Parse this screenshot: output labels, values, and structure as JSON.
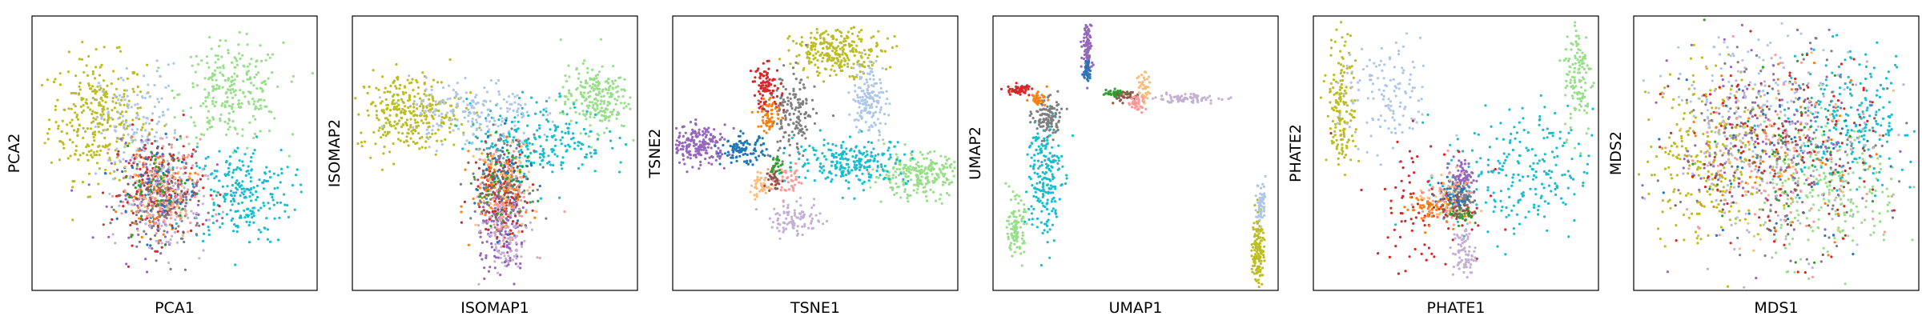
{
  "chart_data": [
    {
      "type": "scatter",
      "xlabel": "PCA1",
      "ylabel": "PCA2",
      "xticks": [],
      "yticks": [],
      "clusters": [
        {
          "color": "#bcbd22",
          "center": [
            0.23,
            0.63
          ],
          "spread": [
            0.085,
            0.11
          ],
          "weight": 1.2
        },
        {
          "color": "#98df8a",
          "center": [
            0.7,
            0.72
          ],
          "spread": [
            0.09,
            0.09
          ],
          "weight": 1.0
        },
        {
          "color": "#17becf",
          "center": [
            0.73,
            0.35
          ],
          "spread": [
            0.09,
            0.09
          ],
          "weight": 0.9
        },
        {
          "color": "#aec7e8",
          "center": [
            0.38,
            0.58
          ],
          "spread": [
            0.07,
            0.12
          ],
          "weight": 0.6
        },
        {
          "color": "#9467bd",
          "center": [
            0.44,
            0.35
          ],
          "spread": [
            0.08,
            0.09
          ],
          "weight": 0.6
        },
        {
          "color": "#d62728",
          "center": [
            0.44,
            0.38
          ],
          "spread": [
            0.08,
            0.1
          ],
          "weight": 0.45
        },
        {
          "color": "#7f7f7f",
          "center": [
            0.46,
            0.3
          ],
          "spread": [
            0.07,
            0.09
          ],
          "weight": 0.45
        },
        {
          "color": "#ff7f0e",
          "center": [
            0.44,
            0.36
          ],
          "spread": [
            0.06,
            0.08
          ],
          "weight": 0.25
        },
        {
          "color": "#c5b0d5",
          "center": [
            0.47,
            0.31
          ],
          "spread": [
            0.07,
            0.09
          ],
          "weight": 0.35
        },
        {
          "color": "#ff9896",
          "center": [
            0.45,
            0.37
          ],
          "spread": [
            0.07,
            0.09
          ],
          "weight": 0.3
        },
        {
          "color": "#8c564b",
          "center": [
            0.45,
            0.36
          ],
          "spread": [
            0.06,
            0.08
          ],
          "weight": 0.2
        },
        {
          "color": "#1f77b4",
          "center": [
            0.44,
            0.38
          ],
          "spread": [
            0.07,
            0.09
          ],
          "weight": 0.2
        },
        {
          "color": "#ffbb78",
          "center": [
            0.45,
            0.37
          ],
          "spread": [
            0.07,
            0.09
          ],
          "weight": 0.2
        },
        {
          "color": "#2ca02c",
          "center": [
            0.45,
            0.37
          ],
          "spread": [
            0.06,
            0.08
          ],
          "weight": 0.15
        }
      ]
    },
    {
      "type": "scatter",
      "xlabel": "ISOMAP1",
      "ylabel": "ISOMAP2",
      "xticks": [],
      "yticks": [],
      "clusters": [
        {
          "color": "#bcbd22",
          "center": [
            0.2,
            0.65
          ],
          "spread": [
            0.09,
            0.07
          ],
          "weight": 1.2
        },
        {
          "color": "#98df8a",
          "center": [
            0.85,
            0.7
          ],
          "spread": [
            0.06,
            0.06
          ],
          "weight": 0.9
        },
        {
          "color": "#17becf",
          "center": [
            0.65,
            0.55
          ],
          "spread": [
            0.12,
            0.07
          ],
          "weight": 0.9
        },
        {
          "color": "#aec7e8",
          "center": [
            0.42,
            0.65
          ],
          "spread": [
            0.11,
            0.06
          ],
          "weight": 0.7
        },
        {
          "color": "#9467bd",
          "center": [
            0.53,
            0.22
          ],
          "spread": [
            0.04,
            0.1
          ],
          "weight": 0.6
        },
        {
          "color": "#d62728",
          "center": [
            0.52,
            0.35
          ],
          "spread": [
            0.05,
            0.09
          ],
          "weight": 0.45
        },
        {
          "color": "#7f7f7f",
          "center": [
            0.52,
            0.4
          ],
          "spread": [
            0.05,
            0.08
          ],
          "weight": 0.45
        },
        {
          "color": "#c5b0d5",
          "center": [
            0.54,
            0.18
          ],
          "spread": [
            0.04,
            0.08
          ],
          "weight": 0.35
        },
        {
          "color": "#ff9896",
          "center": [
            0.53,
            0.36
          ],
          "spread": [
            0.05,
            0.08
          ],
          "weight": 0.3
        },
        {
          "color": "#ff7f0e",
          "center": [
            0.52,
            0.38
          ],
          "spread": [
            0.05,
            0.08
          ],
          "weight": 0.25
        },
        {
          "color": "#1f77b4",
          "center": [
            0.53,
            0.4
          ],
          "spread": [
            0.05,
            0.08
          ],
          "weight": 0.2
        },
        {
          "color": "#8c564b",
          "center": [
            0.52,
            0.37
          ],
          "spread": [
            0.05,
            0.08
          ],
          "weight": 0.2
        },
        {
          "color": "#ffbb78",
          "center": [
            0.53,
            0.38
          ],
          "spread": [
            0.05,
            0.08
          ],
          "weight": 0.2
        },
        {
          "color": "#2ca02c",
          "center": [
            0.53,
            0.38
          ],
          "spread": [
            0.05,
            0.08
          ],
          "weight": 0.15
        }
      ]
    },
    {
      "type": "scatter",
      "xlabel": "TSNE1",
      "ylabel": "TSNE2",
      "xticks": [],
      "yticks": [],
      "clusters": [
        {
          "color": "#bcbd22",
          "center": [
            0.58,
            0.87
          ],
          "spread": [
            0.08,
            0.04
          ],
          "weight": 1.0
        },
        {
          "color": "#aec7e8",
          "center": [
            0.69,
            0.7
          ],
          "spread": [
            0.03,
            0.07
          ],
          "weight": 0.6
        },
        {
          "color": "#98df8a",
          "center": [
            0.86,
            0.42
          ],
          "spread": [
            0.08,
            0.04
          ],
          "weight": 1.0
        },
        {
          "color": "#17becf",
          "center": [
            0.63,
            0.47
          ],
          "spread": [
            0.1,
            0.04
          ],
          "weight": 0.9
        },
        {
          "color": "#9467bd",
          "center": [
            0.09,
            0.53
          ],
          "spread": [
            0.05,
            0.035
          ],
          "weight": 0.8
        },
        {
          "color": "#1f77b4",
          "center": [
            0.25,
            0.51
          ],
          "spread": [
            0.04,
            0.025
          ],
          "weight": 0.4
        },
        {
          "color": "#7f7f7f",
          "center": [
            0.42,
            0.63
          ],
          "spread": [
            0.04,
            0.08
          ],
          "weight": 0.6
        },
        {
          "color": "#d62728",
          "center": [
            0.33,
            0.74
          ],
          "spread": [
            0.025,
            0.04
          ],
          "weight": 0.35
        },
        {
          "color": "#ff7f0e",
          "center": [
            0.34,
            0.64
          ],
          "spread": [
            0.02,
            0.035
          ],
          "weight": 0.2
        },
        {
          "color": "#c5b0d5",
          "center": [
            0.43,
            0.26
          ],
          "spread": [
            0.045,
            0.03
          ],
          "weight": 0.35
        },
        {
          "color": "#ff9896",
          "center": [
            0.4,
            0.4
          ],
          "spread": [
            0.035,
            0.025
          ],
          "weight": 0.2
        },
        {
          "color": "#ffbb78",
          "center": [
            0.31,
            0.38
          ],
          "spread": [
            0.025,
            0.02
          ],
          "weight": 0.15
        },
        {
          "color": "#2ca02c",
          "center": [
            0.36,
            0.46
          ],
          "spread": [
            0.012,
            0.02
          ],
          "weight": 0.1
        },
        {
          "color": "#8c564b",
          "center": [
            0.36,
            0.4
          ],
          "spread": [
            0.012,
            0.02
          ],
          "weight": 0.1
        }
      ]
    },
    {
      "type": "scatter",
      "xlabel": "UMAP1",
      "ylabel": "UMAP2",
      "xticks": [],
      "yticks": [],
      "clusters": [
        {
          "color": "#9467bd",
          "center": [
            0.33,
            0.88
          ],
          "spread": [
            0.008,
            0.05
          ],
          "weight": 0.4
        },
        {
          "color": "#17becf",
          "center": [
            0.18,
            0.42
          ],
          "spread": [
            0.03,
            0.12
          ],
          "weight": 0.8
        },
        {
          "color": "#98df8a",
          "center": [
            0.08,
            0.23
          ],
          "spread": [
            0.015,
            0.05
          ],
          "weight": 0.4
        },
        {
          "color": "#7f7f7f",
          "center": [
            0.19,
            0.63
          ],
          "spread": [
            0.025,
            0.035
          ],
          "weight": 0.45
        },
        {
          "color": "#d62728",
          "center": [
            0.09,
            0.73
          ],
          "spread": [
            0.02,
            0.01
          ],
          "weight": 0.2
        },
        {
          "color": "#ff7f0e",
          "center": [
            0.16,
            0.7
          ],
          "spread": [
            0.015,
            0.01
          ],
          "weight": 0.15
        },
        {
          "color": "#8c564b",
          "center": [
            0.46,
            0.71
          ],
          "spread": [
            0.03,
            0.01
          ],
          "weight": 0.2
        },
        {
          "color": "#c5b0d5",
          "center": [
            0.67,
            0.7
          ],
          "spread": [
            0.06,
            0.008
          ],
          "weight": 0.3
        },
        {
          "color": "#ff9896",
          "center": [
            0.5,
            0.68
          ],
          "spread": [
            0.02,
            0.015
          ],
          "weight": 0.15
        },
        {
          "color": "#ffbb78",
          "center": [
            0.53,
            0.74
          ],
          "spread": [
            0.01,
            0.03
          ],
          "weight": 0.15
        },
        {
          "color": "#2ca02c",
          "center": [
            0.42,
            0.72
          ],
          "spread": [
            0.02,
            0.006
          ],
          "weight": 0.1
        },
        {
          "color": "#bcbd22",
          "center": [
            0.93,
            0.15
          ],
          "spread": [
            0.01,
            0.07
          ],
          "weight": 0.5
        },
        {
          "color": "#aec7e8",
          "center": [
            0.94,
            0.32
          ],
          "spread": [
            0.008,
            0.04
          ],
          "weight": 0.2
        },
        {
          "color": "#1f77b4",
          "center": [
            0.33,
            0.8
          ],
          "spread": [
            0.006,
            0.02
          ],
          "weight": 0.1
        }
      ]
    },
    {
      "type": "scatter",
      "xlabel": "PHATE1",
      "ylabel": "PHATE2",
      "xticks": [],
      "yticks": [],
      "clusters": [
        {
          "color": "#bcbd22",
          "center": [
            0.1,
            0.68
          ],
          "spread": [
            0.025,
            0.12
          ],
          "weight": 0.6
        },
        {
          "color": "#aec7e8",
          "center": [
            0.26,
            0.7
          ],
          "spread": [
            0.08,
            0.1
          ],
          "weight": 0.5
        },
        {
          "color": "#17becf",
          "center": [
            0.72,
            0.42
          ],
          "spread": [
            0.13,
            0.12
          ],
          "weight": 0.9
        },
        {
          "color": "#98df8a",
          "center": [
            0.93,
            0.78
          ],
          "spread": [
            0.025,
            0.11
          ],
          "weight": 0.5
        },
        {
          "color": "#d62728",
          "center": [
            0.4,
            0.32
          ],
          "spread": [
            0.1,
            0.12
          ],
          "weight": 0.4
        },
        {
          "color": "#9467bd",
          "center": [
            0.52,
            0.4
          ],
          "spread": [
            0.02,
            0.04
          ],
          "weight": 0.35
        },
        {
          "color": "#c5b0d5",
          "center": [
            0.53,
            0.14
          ],
          "spread": [
            0.02,
            0.05
          ],
          "weight": 0.3
        },
        {
          "color": "#7f7f7f",
          "center": [
            0.51,
            0.34
          ],
          "spread": [
            0.02,
            0.03
          ],
          "weight": 0.3
        },
        {
          "color": "#ff7f0e",
          "center": [
            0.4,
            0.3
          ],
          "spread": [
            0.04,
            0.03
          ],
          "weight": 0.2
        },
        {
          "color": "#1f77b4",
          "center": [
            0.49,
            0.35
          ],
          "spread": [
            0.03,
            0.03
          ],
          "weight": 0.2
        },
        {
          "color": "#ff9896",
          "center": [
            0.45,
            0.33
          ],
          "spread": [
            0.06,
            0.05
          ],
          "weight": 0.15
        },
        {
          "color": "#ffbb78",
          "center": [
            0.47,
            0.33
          ],
          "spread": [
            0.05,
            0.05
          ],
          "weight": 0.15
        },
        {
          "color": "#2ca02c",
          "center": [
            0.52,
            0.28
          ],
          "spread": [
            0.02,
            0.02
          ],
          "weight": 0.1
        },
        {
          "color": "#8c564b",
          "center": [
            0.5,
            0.3
          ],
          "spread": [
            0.03,
            0.03
          ],
          "weight": 0.1
        }
      ]
    },
    {
      "type": "scatter",
      "xlabel": "MDS1",
      "ylabel": "MDS2",
      "xticks": [],
      "yticks": [],
      "clusters": [
        {
          "color": "#bcbd22",
          "center": [
            0.26,
            0.5
          ],
          "spread": [
            0.11,
            0.16
          ],
          "weight": 1.0
        },
        {
          "color": "#98df8a",
          "center": [
            0.7,
            0.35
          ],
          "spread": [
            0.12,
            0.12
          ],
          "weight": 0.9
        },
        {
          "color": "#17becf",
          "center": [
            0.76,
            0.62
          ],
          "spread": [
            0.12,
            0.12
          ],
          "weight": 0.9
        },
        {
          "color": "#aec7e8",
          "center": [
            0.4,
            0.65
          ],
          "spread": [
            0.15,
            0.16
          ],
          "weight": 0.6
        },
        {
          "color": "#9467bd",
          "center": [
            0.5,
            0.55
          ],
          "spread": [
            0.17,
            0.18
          ],
          "weight": 0.6
        },
        {
          "color": "#d62728",
          "center": [
            0.5,
            0.5
          ],
          "spread": [
            0.18,
            0.18
          ],
          "weight": 0.5
        },
        {
          "color": "#7f7f7f",
          "center": [
            0.52,
            0.52
          ],
          "spread": [
            0.17,
            0.18
          ],
          "weight": 0.5
        },
        {
          "color": "#c5b0d5",
          "center": [
            0.5,
            0.5
          ],
          "spread": [
            0.18,
            0.18
          ],
          "weight": 0.4
        },
        {
          "color": "#ff9896",
          "center": [
            0.5,
            0.5
          ],
          "spread": [
            0.18,
            0.18
          ],
          "weight": 0.3
        },
        {
          "color": "#ff7f0e",
          "center": [
            0.5,
            0.5
          ],
          "spread": [
            0.17,
            0.17
          ],
          "weight": 0.25
        },
        {
          "color": "#1f77b4",
          "center": [
            0.5,
            0.5
          ],
          "spread": [
            0.17,
            0.17
          ],
          "weight": 0.2
        },
        {
          "color": "#8c564b",
          "center": [
            0.5,
            0.5
          ],
          "spread": [
            0.17,
            0.17
          ],
          "weight": 0.2
        },
        {
          "color": "#ffbb78",
          "center": [
            0.5,
            0.5
          ],
          "spread": [
            0.17,
            0.17
          ],
          "weight": 0.2
        },
        {
          "color": "#2ca02c",
          "center": [
            0.5,
            0.5
          ],
          "spread": [
            0.17,
            0.17
          ],
          "weight": 0.15
        }
      ]
    }
  ]
}
